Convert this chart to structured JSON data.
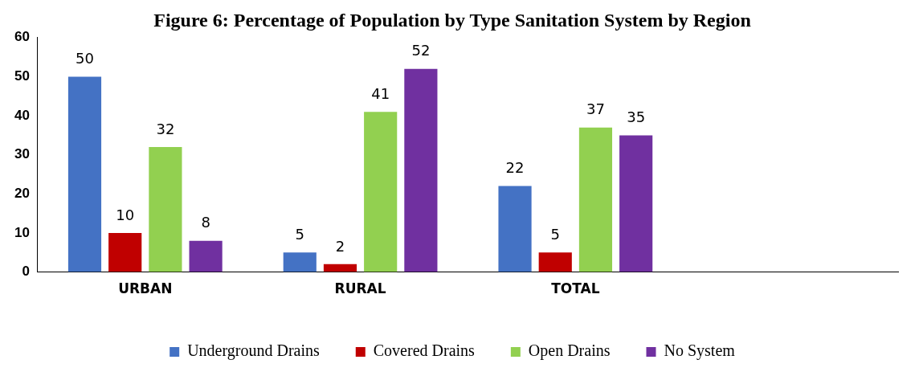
{
  "chart_data": {
    "type": "bar",
    "title": "Figure 6: Percentage of Population by Type Sanitation System by Region",
    "categories": [
      "URBAN",
      "RURAL",
      "TOTAL",
      null
    ],
    "series": [
      {
        "name": "Underground Drains",
        "color": "#4472c4",
        "values": [
          50,
          5,
          22,
          null
        ]
      },
      {
        "name": "Covered Drains",
        "color": "#c00000",
        "values": [
          10,
          2,
          5,
          null
        ]
      },
      {
        "name": "Open Drains",
        "color": "#92d050",
        "values": [
          32,
          41,
          37,
          null
        ]
      },
      {
        "name": "No System",
        "color": "#7030a0",
        "values": [
          8,
          52,
          35,
          null
        ]
      }
    ],
    "ylim": [
      0,
      60
    ],
    "yticks": [
      0,
      10,
      20,
      30,
      40,
      50,
      60
    ],
    "grid": false,
    "legend": "bottom",
    "data_labels": true
  }
}
